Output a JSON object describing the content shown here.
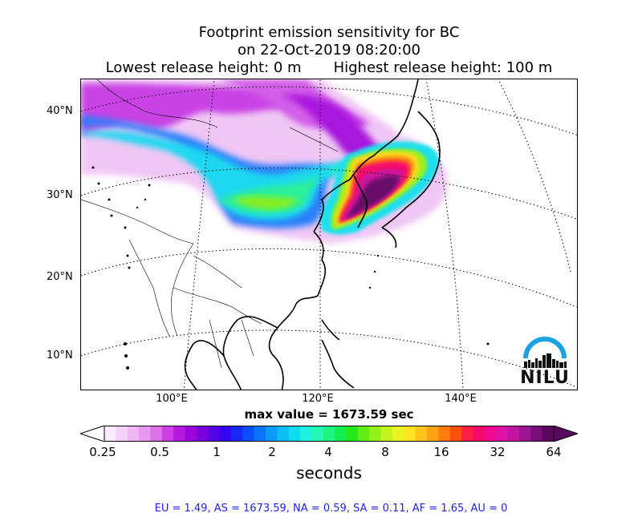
{
  "title": {
    "line1": "Footprint emission sensitivity for BC",
    "line2": "on 22-Oct-2019 08:20:00",
    "line3": "Lowest release height: 0 m       Highest release height: 100 m"
  },
  "map": {
    "lat_labels": [
      "40°N",
      "30°N",
      "20°N",
      "10°N"
    ],
    "lon_labels": [
      "100°E",
      "120°E",
      "140°E"
    ],
    "max_value_text": "max value = 1673.59 sec",
    "logo_text": "NILU"
  },
  "colorbar": {
    "ticks": [
      "0.25",
      "0.5",
      "1",
      "2",
      "4",
      "8",
      "16",
      "32",
      "64"
    ],
    "unit_label": "seconds",
    "colors": [
      "#fbeafb",
      "#f6d2f7",
      "#efb6f2",
      "#e896ee",
      "#de70ea",
      "#cd3fe4",
      "#b619de",
      "#9a06d9",
      "#7a00dd",
      "#5600e6",
      "#3306ef",
      "#1a28f6",
      "#0a50fa",
      "#0a75fb",
      "#0b99fa",
      "#0cbcf7",
      "#10dcf0",
      "#1ef2dc",
      "#25f7b4",
      "#1ff483",
      "#14ee4e",
      "#25e81b",
      "#63ec15",
      "#94f21b",
      "#c3f41e",
      "#e8f320",
      "#fde322",
      "#fec41c",
      "#fea214",
      "#fe7d0f",
      "#fd4f0c",
      "#fb2044",
      "#f60a6b",
      "#ef0a90",
      "#e012a5",
      "#c215a4",
      "#9e1594",
      "#7b0f7a",
      "#5a085e"
    ]
  },
  "stats_text": "EU = 1.49,  AS = 1673.59,  NA = 0.59,  SA = 0.11,  AF = 1.65,  AU = 0"
}
